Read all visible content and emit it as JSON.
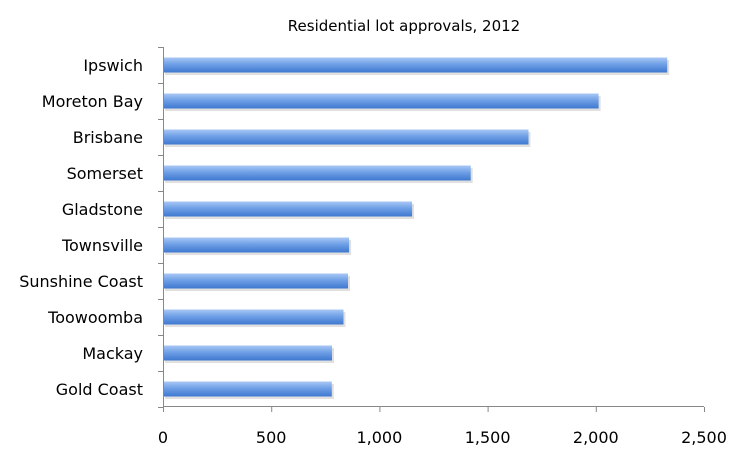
{
  "chart_data": {
    "type": "bar",
    "orientation": "horizontal",
    "title": "Residential lot approvals, 2012",
    "xlabel": "",
    "ylabel": "",
    "categories": [
      "Ipswich",
      "Moreton Bay",
      "Brisbane",
      "Somerset",
      "Gladstone",
      "Townsville",
      "Sunshine Coast",
      "Toowoomba",
      "Mackay",
      "Gold Coast"
    ],
    "values": [
      2330,
      2013,
      1689,
      1422,
      1151,
      860,
      855,
      834,
      781,
      780
    ],
    "xlim": [
      0,
      2500
    ],
    "xticks": [
      0,
      500,
      1000,
      1500,
      2000,
      2500
    ],
    "xtick_labels": [
      "0",
      "500",
      "1,000",
      "1,500",
      "2,000",
      "2,500"
    ],
    "grid": false,
    "legend": "none",
    "bar_color": "#5b8fdc"
  }
}
